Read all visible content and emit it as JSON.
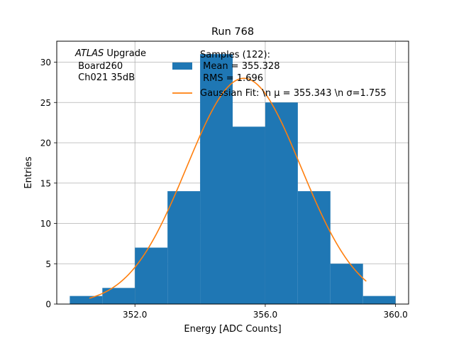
{
  "chart_data": {
    "type": "bar",
    "title": "Run 768",
    "xlabel": "Energy [ADC Counts]",
    "ylabel": "Entries",
    "xlim": [
      349.6,
      360.4
    ],
    "ylim": [
      0,
      32.6
    ],
    "xticks": [
      352.0,
      356.0,
      360.0
    ],
    "xtick_labels": [
      "352.0",
      "356.0",
      "360.0"
    ],
    "yticks": [
      0,
      5,
      10,
      15,
      20,
      25,
      30
    ],
    "ytick_labels": [
      "0",
      "5",
      "10",
      "15",
      "20",
      "25",
      "30"
    ],
    "grid": true,
    "bins": [
      {
        "x0": 350,
        "x1": 351,
        "value": 1
      },
      {
        "x0": 351,
        "x1": 352,
        "value": 2
      },
      {
        "x0": 352,
        "x1": 353,
        "value": 7
      },
      {
        "x0": 353,
        "x1": 354,
        "value": 14
      },
      {
        "x0": 354,
        "x1": 355,
        "value": 31
      },
      {
        "x0": 355,
        "x1": 356,
        "value": 22
      },
      {
        "x0": 356,
        "x1": 357,
        "value": 25
      },
      {
        "x0": 357,
        "x1": 358,
        "value": 14
      },
      {
        "x0": 358,
        "x1": 359,
        "value": 5
      },
      {
        "x0": 359,
        "x1": 360,
        "value": 1
      }
    ],
    "fit": {
      "mu": 355.343,
      "sigma": 1.755,
      "amplitude": 28.0,
      "x_range": [
        350.6,
        359.1
      ]
    },
    "annotation": {
      "line1_italic": "ATLAS",
      "line1_rest": " Upgrade",
      "line2": " Board260",
      "line3": " Ch021 35dB"
    },
    "legend": {
      "position": "upper center",
      "entries": [
        {
          "kind": "patch",
          "lines": [
            "Samples (122):",
            " Mean = 355.328",
            " RMS = 1.696"
          ]
        },
        {
          "kind": "line",
          "text": "Gaussian Fit: \\n μ = 355.343 \\n σ=1.755"
        }
      ]
    },
    "colors": {
      "bars": "#1f77b4",
      "fit": "#ff7f0e",
      "grid": "#b0b0b0"
    }
  }
}
